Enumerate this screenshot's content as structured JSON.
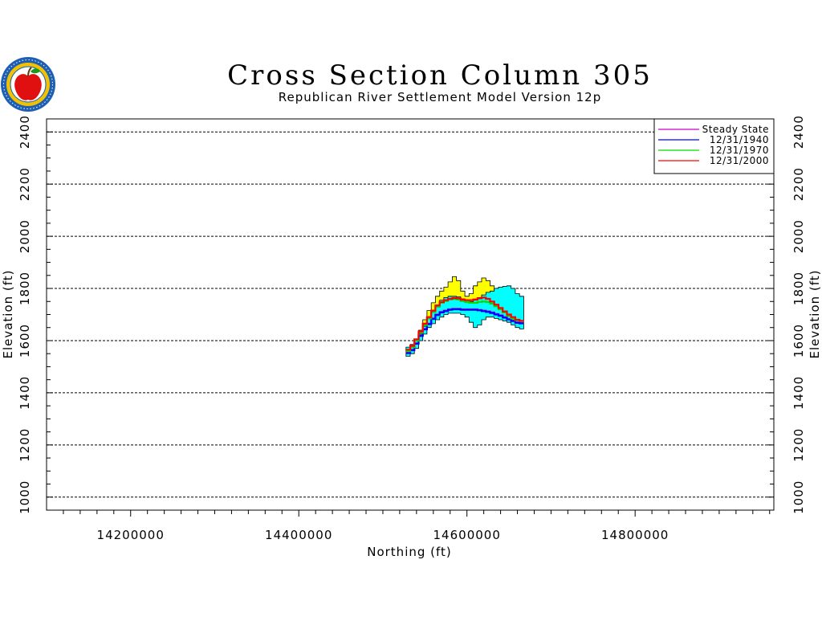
{
  "chart_data": {
    "type": "line",
    "title": "Cross Section Column 305",
    "subtitle": "Republican River Settlement Model Version 12p",
    "xlabel": "Northing (ft)",
    "ylabel": "Elevation (ft)",
    "xlim": [
      14100000,
      14965000
    ],
    "ylim": [
      950,
      2450
    ],
    "xticks": [
      14200000,
      14400000,
      14600000,
      14800000
    ],
    "xtick_labels": [
      "14200000",
      "14400000",
      "14600000",
      "14800000"
    ],
    "yticks": [
      1000,
      1200,
      1400,
      1600,
      1800,
      2000,
      2200,
      2400
    ],
    "ytick_labels": [
      "1000",
      "1200",
      "1400",
      "1600",
      "1800",
      "2000",
      "2200",
      "2400"
    ],
    "grid": true,
    "legend_position": "top-right",
    "regions": [
      {
        "color": "#ffff00",
        "x": [
          14530000,
          14535000,
          14540000,
          14545000,
          14550000,
          14555000,
          14560000,
          14565000,
          14570000,
          14575000,
          14580000,
          14585000,
          14590000,
          14595000,
          14600000,
          14605000,
          14610000,
          14615000,
          14620000,
          14625000,
          14630000
        ],
        "top": [
          1565,
          1580,
          1605,
          1640,
          1680,
          1715,
          1745,
          1770,
          1790,
          1805,
          1825,
          1845,
          1830,
          1790,
          1770,
          1780,
          1810,
          1825,
          1840,
          1830,
          1810
        ],
        "bottom": [
          1560,
          1570,
          1590,
          1620,
          1650,
          1680,
          1705,
          1725,
          1740,
          1750,
          1755,
          1755,
          1755,
          1750,
          1745,
          1745,
          1750,
          1755,
          1755,
          1750,
          1745
        ]
      },
      {
        "color": "#00ffff",
        "x": [
          14530000,
          14535000,
          14540000,
          14545000,
          14550000,
          14555000,
          14560000,
          14565000,
          14570000,
          14575000,
          14580000,
          14585000,
          14590000,
          14595000,
          14600000,
          14605000,
          14610000,
          14615000,
          14620000,
          14625000,
          14630000,
          14635000,
          14640000,
          14645000,
          14650000,
          14655000,
          14660000,
          14665000
        ],
        "top": [
          1575,
          1585,
          1600,
          1625,
          1655,
          1685,
          1710,
          1735,
          1755,
          1765,
          1770,
          1770,
          1768,
          1760,
          1755,
          1750,
          1755,
          1765,
          1775,
          1785,
          1790,
          1800,
          1805,
          1808,
          1810,
          1800,
          1780,
          1770
        ],
        "bottom": [
          1540,
          1550,
          1570,
          1600,
          1625,
          1650,
          1665,
          1680,
          1690,
          1700,
          1705,
          1705,
          1705,
          1700,
          1690,
          1670,
          1650,
          1660,
          1680,
          1690,
          1690,
          1685,
          1680,
          1675,
          1670,
          1660,
          1650,
          1645
        ]
      }
    ],
    "series": [
      {
        "name": "Steady State",
        "color": "#cc00cc",
        "x": [
          14530000,
          14535000,
          14540000,
          14545000,
          14550000,
          14555000,
          14560000,
          14565000,
          14570000,
          14575000,
          14580000,
          14585000,
          14590000,
          14595000,
          14600000,
          14605000,
          14610000,
          14615000,
          14620000,
          14625000,
          14630000,
          14635000,
          14640000,
          14645000,
          14650000,
          14655000,
          14660000,
          14665000
        ],
        "y": [
          1555,
          1565,
          1590,
          1620,
          1645,
          1665,
          1685,
          1700,
          1710,
          1715,
          1720,
          1722,
          1722,
          1720,
          1720,
          1720,
          1720,
          1718,
          1715,
          1712,
          1708,
          1702,
          1697,
          1690,
          1683,
          1677,
          1670,
          1668
        ]
      },
      {
        "name": "12/31/1940",
        "color": "#0000ff",
        "x": [
          14530000,
          14535000,
          14540000,
          14545000,
          14550000,
          14555000,
          14560000,
          14565000,
          14570000,
          14575000,
          14580000,
          14585000,
          14590000,
          14595000,
          14600000,
          14605000,
          14610000,
          14615000,
          14620000,
          14625000,
          14630000,
          14635000,
          14640000,
          14645000,
          14650000,
          14655000,
          14660000,
          14665000
        ],
        "y": [
          1552,
          1563,
          1588,
          1618,
          1643,
          1663,
          1683,
          1698,
          1708,
          1713,
          1718,
          1720,
          1720,
          1718,
          1718,
          1718,
          1718,
          1716,
          1713,
          1710,
          1706,
          1700,
          1695,
          1688,
          1681,
          1675,
          1668,
          1666
        ]
      },
      {
        "name": "12/31/1970",
        "color": "#00dd00",
        "x": [
          14530000,
          14535000,
          14540000,
          14545000,
          14550000,
          14555000,
          14560000,
          14565000,
          14570000,
          14575000,
          14580000,
          14585000,
          14590000,
          14595000,
          14600000,
          14605000,
          14610000,
          14615000,
          14620000,
          14625000,
          14630000,
          14635000,
          14640000,
          14645000,
          14650000,
          14655000,
          14660000,
          14665000
        ],
        "y": [
          1560,
          1575,
          1600,
          1630,
          1660,
          1685,
          1710,
          1730,
          1745,
          1752,
          1758,
          1760,
          1758,
          1752,
          1748,
          1745,
          1745,
          1748,
          1750,
          1748,
          1742,
          1732,
          1720,
          1708,
          1695,
          1685,
          1678,
          1675
        ]
      },
      {
        "name": "12/31/2000",
        "color": "#ff0000",
        "x": [
          14530000,
          14535000,
          14540000,
          14545000,
          14550000,
          14555000,
          14560000,
          14565000,
          14570000,
          14575000,
          14580000,
          14585000,
          14590000,
          14595000,
          14600000,
          14605000,
          14610000,
          14615000,
          14620000,
          14625000,
          14630000,
          14635000,
          14640000,
          14645000,
          14650000,
          14655000,
          14660000,
          14665000
        ],
        "y": [
          1565,
          1580,
          1605,
          1635,
          1665,
          1690,
          1715,
          1735,
          1748,
          1755,
          1760,
          1763,
          1762,
          1757,
          1755,
          1755,
          1758,
          1762,
          1765,
          1760,
          1750,
          1738,
          1725,
          1712,
          1700,
          1690,
          1680,
          1676
        ]
      }
    ]
  },
  "logo": {
    "name": "agency seal with red apple",
    "colors": {
      "outer": "#1e5fb4",
      "ring": "#f2c200",
      "inner": "#ffffff",
      "apple": "#e01010",
      "leaf": "#1a9a1a"
    }
  },
  "colors": {
    "axis": "#000000",
    "grid": "#000000",
    "background": "#ffffff"
  }
}
